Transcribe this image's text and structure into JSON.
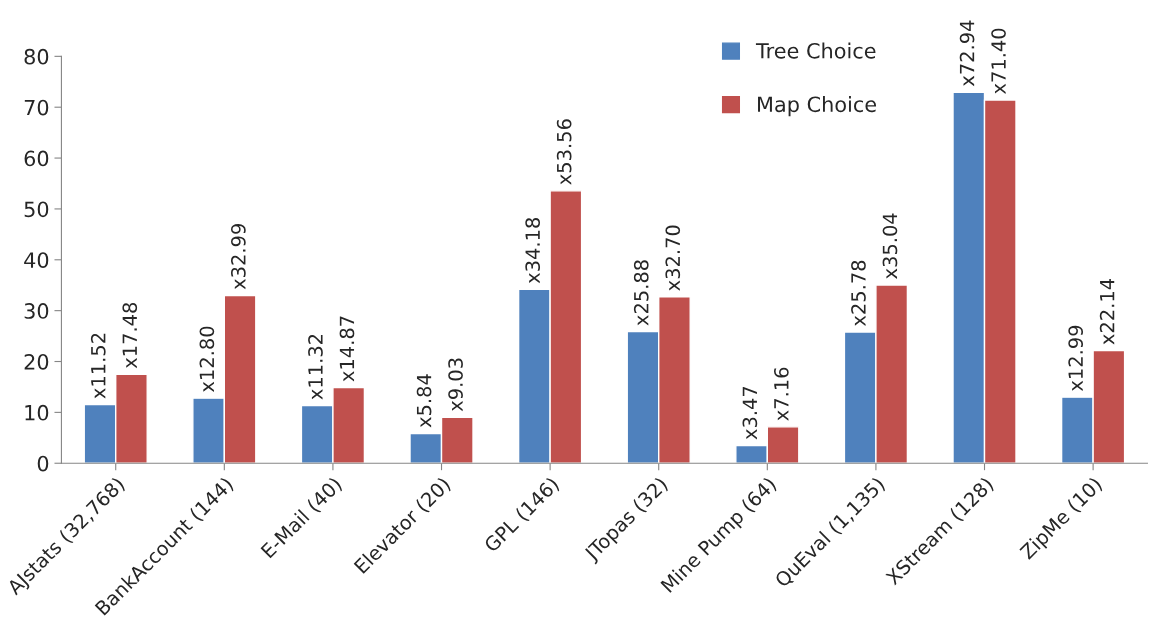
{
  "chart_data": {
    "type": "bar",
    "categories": [
      "AJstats (32,768)",
      "BankAccount (144)",
      "E-Mail (40)",
      "Elevator (20)",
      "GPL (146)",
      "JTopas (32)",
      "Mine Pump (64)",
      "QuEval (1,135)",
      "XStream (128)",
      "ZipMe (10)"
    ],
    "series": [
      {
        "name": "Tree Choice",
        "color": "#4f81bd",
        "values": [
          11.52,
          12.8,
          11.32,
          5.84,
          34.18,
          25.88,
          3.47,
          25.78,
          72.94,
          12.99
        ],
        "value_labels": [
          "x11.52",
          "x12.80",
          "x11.32",
          "x5.84",
          "x34.18",
          "x25.88",
          "x3.47",
          "x25.78",
          "x72.94",
          "x12.99"
        ]
      },
      {
        "name": "Map Choice",
        "color": "#c0504d",
        "values": [
          17.48,
          32.99,
          14.87,
          9.03,
          53.56,
          32.7,
          7.16,
          35.04,
          71.4,
          22.14
        ],
        "value_labels": [
          "x17.48",
          "x32.99",
          "x14.87",
          "x9.03",
          "x53.56",
          "x32.70",
          "x7.16",
          "x35.04",
          "x71.40",
          "x22.14"
        ]
      }
    ],
    "ylim": [
      0,
      80
    ],
    "yticks": [
      0,
      10,
      20,
      30,
      40,
      50,
      60,
      70,
      80
    ],
    "grid": false,
    "legend": "top"
  }
}
